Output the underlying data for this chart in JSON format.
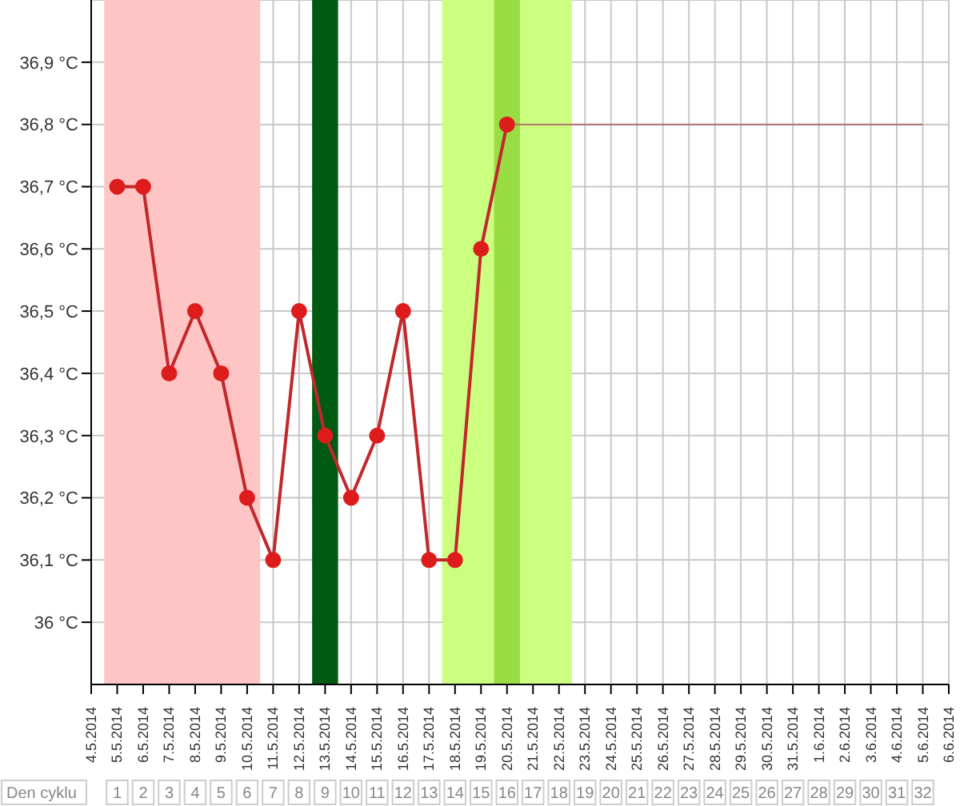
{
  "chart_data": {
    "type": "line",
    "categories": [
      "4.5.2014",
      "5.5.2014",
      "6.5.2014",
      "7.5.2014",
      "8.5.2014",
      "9.5.2014",
      "10.5.2014",
      "11.5.2014",
      "12.5.2014",
      "13.5.2014",
      "14.5.2014",
      "15.5.2014",
      "16.5.2014",
      "17.5.2014",
      "18.5.2014",
      "19.5.2014",
      "20.5.2014",
      "21.5.2014",
      "22.5.2014",
      "23.5.2014",
      "24.5.2014",
      "25.5.2014",
      "26.5.2014",
      "27.5.2014",
      "28.5.2014",
      "29.5.2014",
      "30.5.2014",
      "31.5.2014",
      "1.6.2014",
      "2.6.2014",
      "3.6.2014",
      "4.6.2014",
      "5.6.2014",
      "6.6.2014"
    ],
    "series": [
      {
        "color": "#c0282c",
        "marker": "circle",
        "values": [
          null,
          36.7,
          36.7,
          36.4,
          36.5,
          36.4,
          36.2,
          36.1,
          36.5,
          36.3,
          36.2,
          36.3,
          36.5,
          36.1,
          36.1,
          36.6,
          36.8,
          null,
          null,
          null,
          null,
          null,
          null,
          null,
          null,
          null,
          null,
          null,
          null,
          null,
          null,
          null,
          null,
          null
        ]
      },
      {
        "color": "#b07070",
        "marker": "none",
        "values": [
          null,
          null,
          null,
          null,
          null,
          null,
          null,
          null,
          null,
          null,
          null,
          null,
          null,
          null,
          null,
          null,
          36.8,
          36.8,
          36.8,
          36.8,
          36.8,
          36.8,
          36.8,
          36.8,
          36.8,
          36.8,
          36.8,
          36.8,
          36.8,
          36.8,
          36.8,
          36.8,
          36.8,
          null
        ]
      }
    ],
    "ylim": [
      35.9,
      37.0
    ],
    "yticks": [
      {
        "value": 36.0,
        "label": "36 °C"
      },
      {
        "value": 36.1,
        "label": "36,1 °C"
      },
      {
        "value": 36.2,
        "label": "36,2 °C"
      },
      {
        "value": 36.3,
        "label": "36,3 °C"
      },
      {
        "value": 36.4,
        "label": "36,4 °C"
      },
      {
        "value": 36.5,
        "label": "36,5 °C"
      },
      {
        "value": 36.6,
        "label": "36,6 °C"
      },
      {
        "value": 36.7,
        "label": "36,7 °C"
      },
      {
        "value": 36.8,
        "label": "36,8 °C"
      },
      {
        "value": 36.9,
        "label": "36,9 °C"
      }
    ],
    "bands": [
      {
        "axis": "x",
        "from": "5.5.2014",
        "to": "10.5.2014",
        "color": "#ffc4c4"
      },
      {
        "axis": "x",
        "from": "13.5.2014",
        "to": "13.5.2014",
        "color": "#005a12"
      },
      {
        "axis": "x",
        "from": "18.5.2014",
        "to": "22.5.2014",
        "color": "#ccff80"
      },
      {
        "axis": "x",
        "from": "20.5.2014",
        "to": "20.5.2014",
        "color": "#99dd44"
      }
    ],
    "grid": true,
    "x2label": "Den cyklu",
    "x2lim": [
      0,
      33
    ],
    "x2ticks": [
      1,
      2,
      3,
      4,
      5,
      6,
      7,
      8,
      9,
      10,
      11,
      12,
      13,
      14,
      15,
      16,
      17,
      18,
      19,
      20,
      21,
      22,
      23,
      24,
      25,
      26,
      27,
      28,
      29,
      30,
      31,
      32
    ]
  }
}
